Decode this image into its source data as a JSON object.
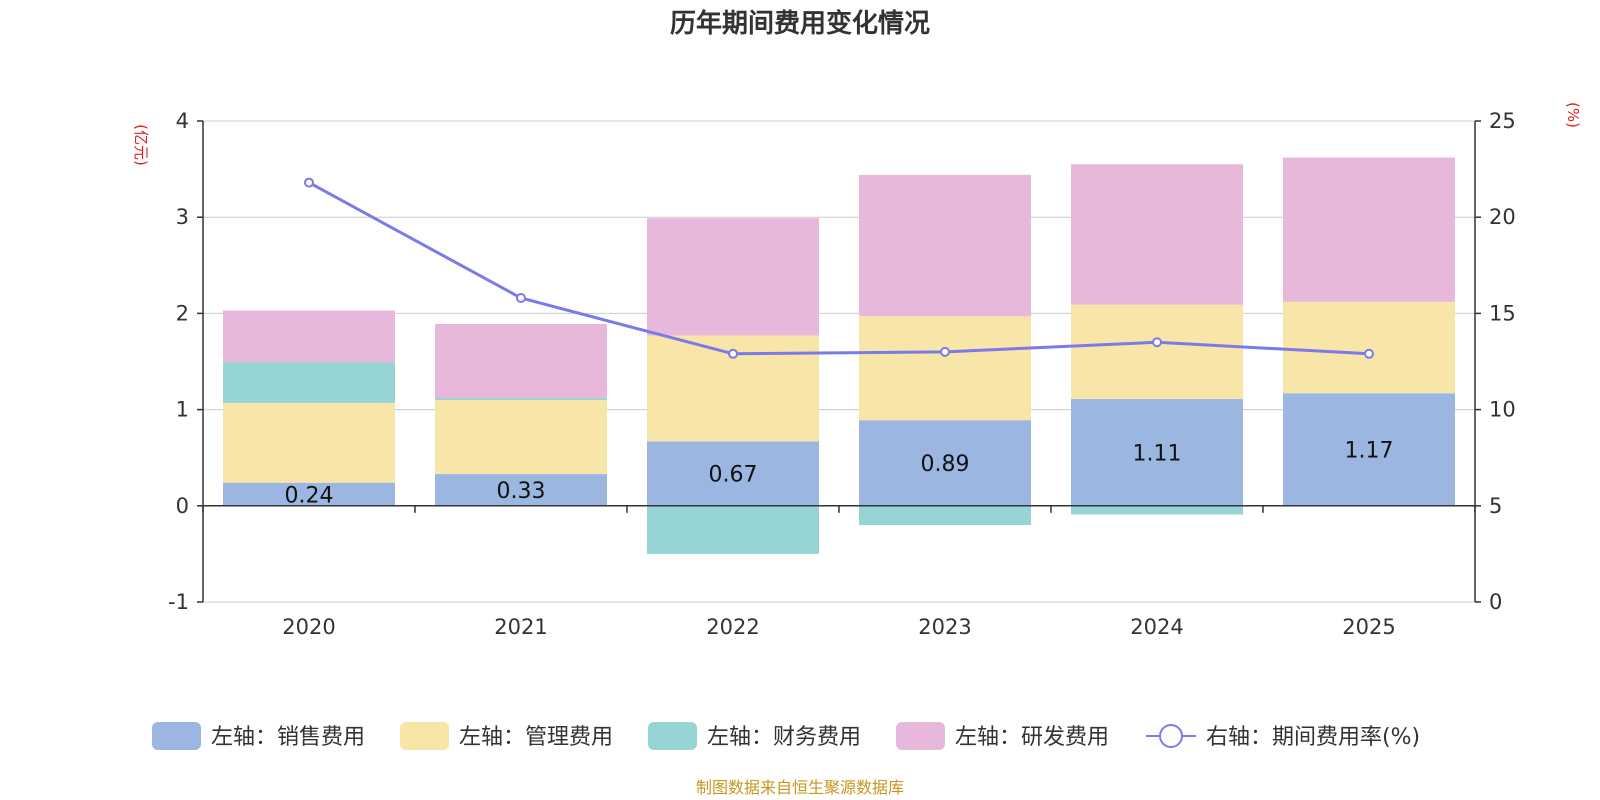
{
  "chart_data": {
    "type": "bar",
    "title": "历年期间费用变化情况",
    "categories": [
      "2020",
      "2021",
      "2022",
      "2023",
      "2024",
      "2025"
    ],
    "left_axis": {
      "unit": "(亿元)",
      "ylim": [
        -1,
        4
      ],
      "ticks": [
        "-1",
        "0",
        "1",
        "2",
        "3",
        "4"
      ]
    },
    "right_axis": {
      "unit": "(%)",
      "ylim": [
        0,
        25
      ],
      "ticks": [
        "0",
        "5",
        "10",
        "15",
        "20",
        "25"
      ]
    },
    "series": [
      {
        "name": "左轴：销售费用",
        "axis": "left",
        "stack": true,
        "color": "#9bb7e1",
        "values": [
          0.24,
          0.33,
          0.67,
          0.89,
          1.11,
          1.17
        ],
        "labels": [
          "0.24",
          "0.33",
          "0.67",
          "0.89",
          "1.11",
          "1.17"
        ]
      },
      {
        "name": "左轴：管理费用",
        "axis": "left",
        "stack": true,
        "color": "#f8e6a8",
        "values": [
          0.83,
          0.77,
          1.1,
          1.08,
          0.98,
          0.95
        ]
      },
      {
        "name": "左轴：财务费用",
        "axis": "left",
        "stack": true,
        "color": "#97d4d4",
        "values": [
          0.42,
          0.02,
          -0.5,
          -0.2,
          -0.09,
          0.0
        ]
      },
      {
        "name": "左轴：研发费用",
        "axis": "left",
        "stack": true,
        "color": "#e8b8da",
        "values": [
          0.54,
          0.77,
          1.22,
          1.47,
          1.46,
          1.5
        ]
      },
      {
        "name": "右轴：期间费用率(%)",
        "axis": "right",
        "type": "line",
        "color": "#7a7ae8",
        "values": [
          21.8,
          15.8,
          12.9,
          13.0,
          13.5,
          12.9
        ]
      }
    ],
    "source": "制图数据来自恒生聚源数据库"
  }
}
